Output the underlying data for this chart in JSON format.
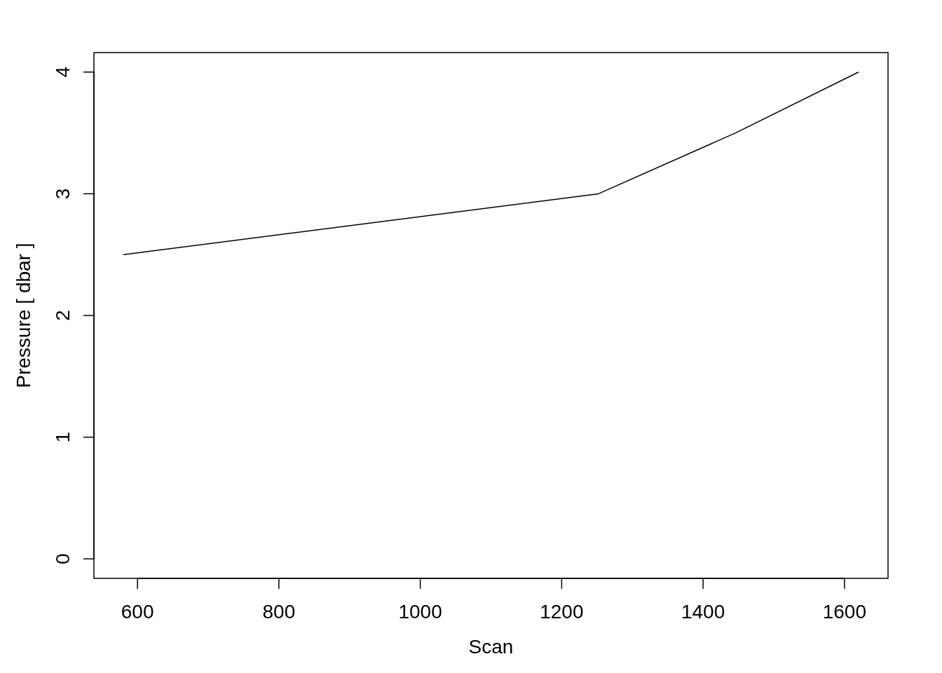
{
  "chart_data": {
    "type": "line",
    "xlabel": "Scan",
    "ylabel": "Pressure [ dbar ]",
    "x": [
      580,
      1252,
      1446,
      1620
    ],
    "series": [
      {
        "color": "#000000",
        "values": [
          2.5,
          3.0,
          3.5,
          4.0
        ]
      }
    ],
    "xlim": [
      538.4,
      1661.6
    ],
    "ylim": [
      -0.16,
      4.16
    ],
    "xticks": [
      600,
      800,
      1000,
      1200,
      1400,
      1600
    ],
    "yticks": [
      0,
      1,
      2,
      3,
      4
    ],
    "grid": false,
    "marker": "none",
    "line_style": "solid"
  }
}
